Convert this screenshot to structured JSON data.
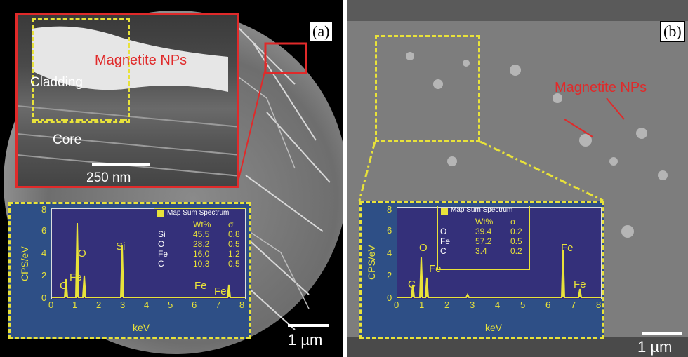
{
  "panel_a": {
    "tag": "(a)",
    "inset": {
      "nps_label": "Magnetite NPs",
      "cladding_label": "Cladding",
      "core_label": "Core",
      "scale_label": "250 nm"
    },
    "scale_label": "1 µm",
    "eds": {
      "legend_title": "Map Sum Spectrum",
      "header": [
        "",
        "Wt%",
        "σ"
      ],
      "rows": [
        [
          "Si",
          "45.5",
          "0.8"
        ],
        [
          "O",
          "28.2",
          "0.5"
        ],
        [
          "Fe",
          "16.0",
          "1.2"
        ],
        [
          "C",
          "10.3",
          "0.5"
        ]
      ],
      "ylabel": "CPS/eV",
      "xlabel": "keV",
      "peaks": [
        "O",
        "C",
        "Fe",
        "Si",
        "Fe",
        "Fe"
      ]
    }
  },
  "panel_b": {
    "tag": "(b)",
    "nps_label": "Magnetite NPs",
    "scale_label": "1 µm",
    "eds": {
      "legend_title": "Map Sum Spectrum",
      "header": [
        "",
        "Wt%",
        "σ"
      ],
      "rows": [
        [
          "O",
          "39.4",
          "0.2"
        ],
        [
          "Fe",
          "57.2",
          "0.5"
        ],
        [
          "C",
          "3.4",
          "0.2"
        ]
      ],
      "ylabel": "CPS/eV",
      "xlabel": "keV",
      "peaks": [
        "O",
        "Fe",
        "C",
        "Fe",
        "Fe"
      ]
    }
  },
  "x_ticks": [
    "0",
    "1",
    "2",
    "3",
    "4",
    "5",
    "6",
    "7",
    "8"
  ],
  "y_ticks": [
    "0",
    "2",
    "4",
    "6",
    "8"
  ],
  "colors": {
    "accent": "#e8e23a",
    "label_red": "#e02a2a",
    "plot_bg": "#34307a"
  }
}
